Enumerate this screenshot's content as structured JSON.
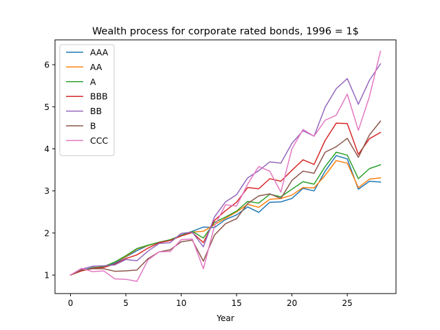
{
  "chart_data": {
    "type": "line",
    "title": "Wealth process for corporate rated bonds, 1996 = 1$",
    "xlabel": "Year",
    "ylabel": "",
    "xlim": [
      -1.4,
      29.4
    ],
    "ylim": [
      0.56,
      6.59
    ],
    "xticks": [
      0,
      5,
      10,
      15,
      20,
      25
    ],
    "yticks": [
      1,
      2,
      3,
      4,
      5,
      6
    ],
    "grid": false,
    "legend_position": "top-left",
    "x": [
      0,
      1,
      2,
      3,
      4,
      5,
      6,
      7,
      8,
      9,
      10,
      11,
      12,
      13,
      14,
      15,
      16,
      17,
      18,
      19,
      20,
      21,
      22,
      23,
      24,
      25,
      26,
      27,
      28
    ],
    "series": [
      {
        "name": "AAA",
        "color": "#1f77b4",
        "values": [
          1.0,
          1.11,
          1.18,
          1.19,
          1.28,
          1.43,
          1.58,
          1.7,
          1.78,
          1.83,
          1.95,
          2.04,
          2.14,
          2.13,
          2.32,
          2.43,
          2.62,
          2.49,
          2.73,
          2.74,
          2.82,
          3.06,
          3.0,
          3.47,
          3.84,
          3.76,
          3.04,
          3.23,
          3.21
        ]
      },
      {
        "name": "AA",
        "color": "#ff7f0e",
        "values": [
          1.0,
          1.1,
          1.17,
          1.2,
          1.31,
          1.44,
          1.62,
          1.7,
          1.78,
          1.84,
          1.94,
          2.02,
          2.04,
          2.2,
          2.35,
          2.5,
          2.68,
          2.61,
          2.8,
          2.82,
          2.9,
          3.08,
          3.07,
          3.37,
          3.72,
          3.66,
          3.08,
          3.28,
          3.31
        ]
      },
      {
        "name": "A",
        "color": "#2ca02c",
        "values": [
          1.0,
          1.1,
          1.17,
          1.2,
          1.31,
          1.46,
          1.63,
          1.71,
          1.78,
          1.84,
          1.94,
          2.04,
          1.88,
          2.25,
          2.38,
          2.52,
          2.75,
          2.71,
          2.92,
          2.86,
          3.04,
          3.22,
          3.16,
          3.58,
          3.92,
          3.85,
          3.29,
          3.53,
          3.62
        ]
      },
      {
        "name": "BBB",
        "color": "#d62728",
        "values": [
          1.0,
          1.1,
          1.16,
          1.18,
          1.26,
          1.39,
          1.48,
          1.64,
          1.77,
          1.82,
          1.93,
          2.01,
          1.77,
          2.3,
          2.53,
          2.73,
          3.08,
          3.05,
          3.29,
          3.23,
          3.49,
          3.74,
          3.63,
          4.2,
          4.61,
          4.6,
          3.87,
          4.24,
          4.39
        ]
      },
      {
        "name": "BB",
        "color": "#9467bd",
        "values": [
          1.0,
          1.14,
          1.21,
          1.22,
          1.24,
          1.37,
          1.34,
          1.57,
          1.75,
          1.77,
          1.99,
          2.02,
          1.67,
          2.38,
          2.74,
          2.91,
          3.31,
          3.48,
          3.69,
          3.66,
          4.13,
          4.43,
          4.3,
          4.99,
          5.43,
          5.67,
          5.06,
          5.63,
          6.02
        ]
      },
      {
        "name": "B",
        "color": "#8c564b",
        "values": [
          1.0,
          1.12,
          1.15,
          1.15,
          1.09,
          1.1,
          1.12,
          1.39,
          1.55,
          1.6,
          1.79,
          1.83,
          1.33,
          1.95,
          2.22,
          2.34,
          2.7,
          2.88,
          2.93,
          2.82,
          3.25,
          3.47,
          3.42,
          3.92,
          4.05,
          4.25,
          3.8,
          4.33,
          4.66
        ]
      },
      {
        "name": "CCC",
        "color": "#e377c2",
        "values": [
          1.0,
          1.16,
          1.08,
          1.1,
          0.91,
          0.9,
          0.85,
          1.36,
          1.55,
          1.56,
          1.84,
          1.86,
          1.15,
          2.16,
          2.67,
          2.64,
          3.16,
          3.58,
          3.47,
          2.97,
          4.0,
          4.46,
          4.3,
          4.68,
          4.8,
          5.3,
          4.44,
          5.24,
          6.32
        ]
      }
    ]
  }
}
